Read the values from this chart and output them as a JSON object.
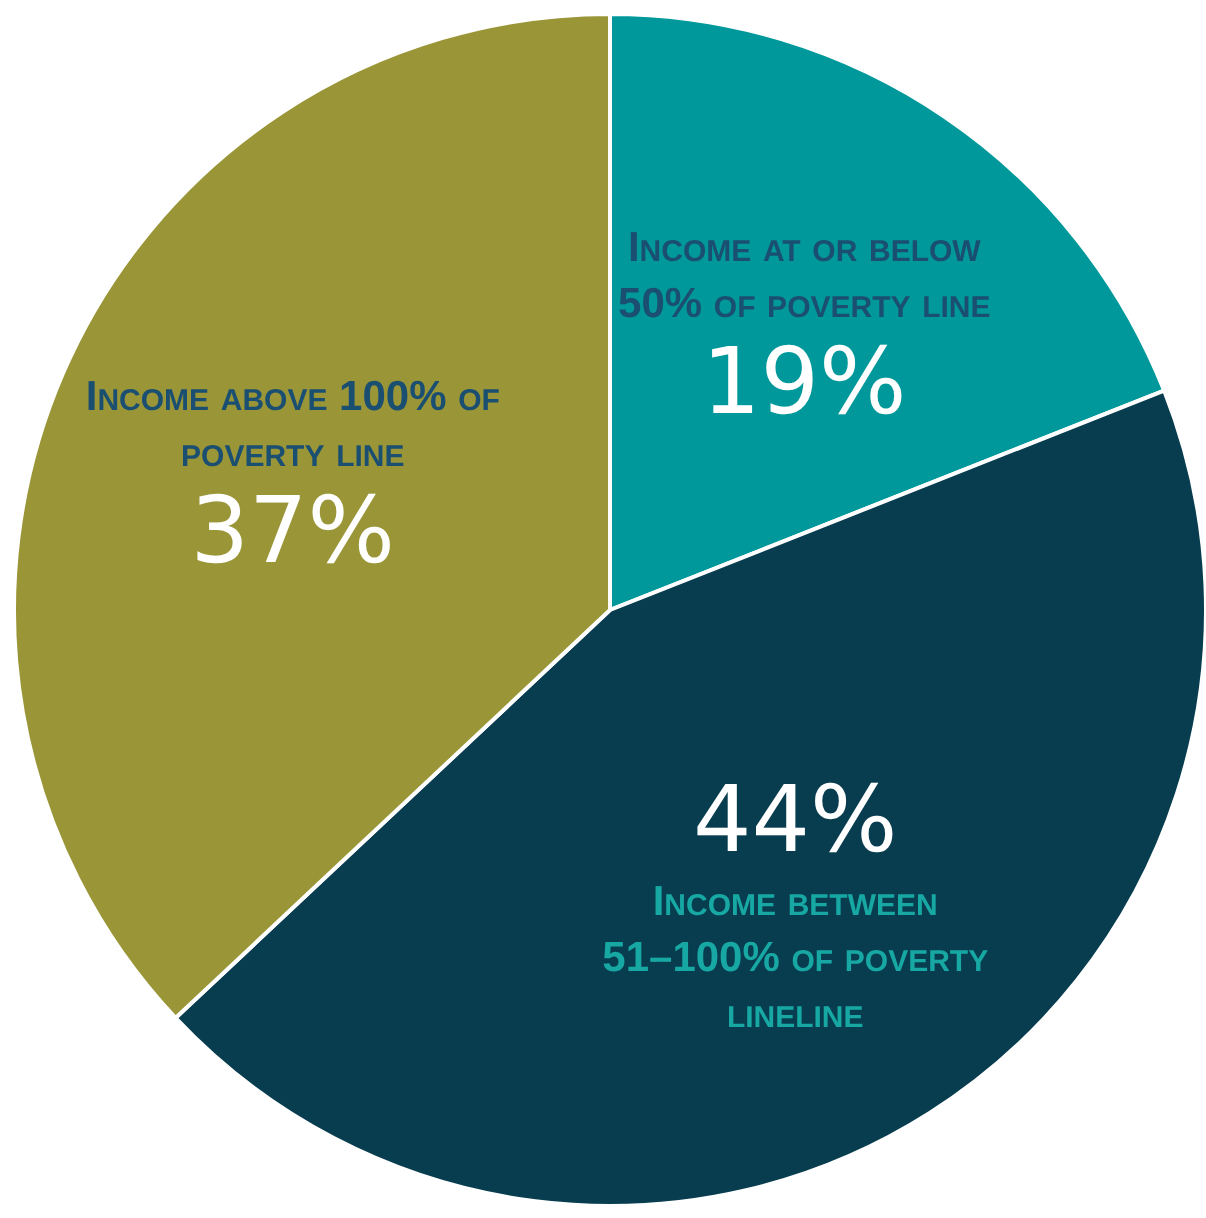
{
  "chart_data": {
    "type": "pie",
    "categories": [
      "Income at or below 50% of poverty line",
      "Income between 51–100% of poverty lineline",
      "Income above 100% of poverty line"
    ],
    "values": [
      19,
      44,
      37
    ],
    "colors": [
      "#00989a",
      "#073d4f",
      "#9a9637"
    ],
    "value_labels": [
      "19%",
      "44%",
      "37%"
    ]
  }
}
